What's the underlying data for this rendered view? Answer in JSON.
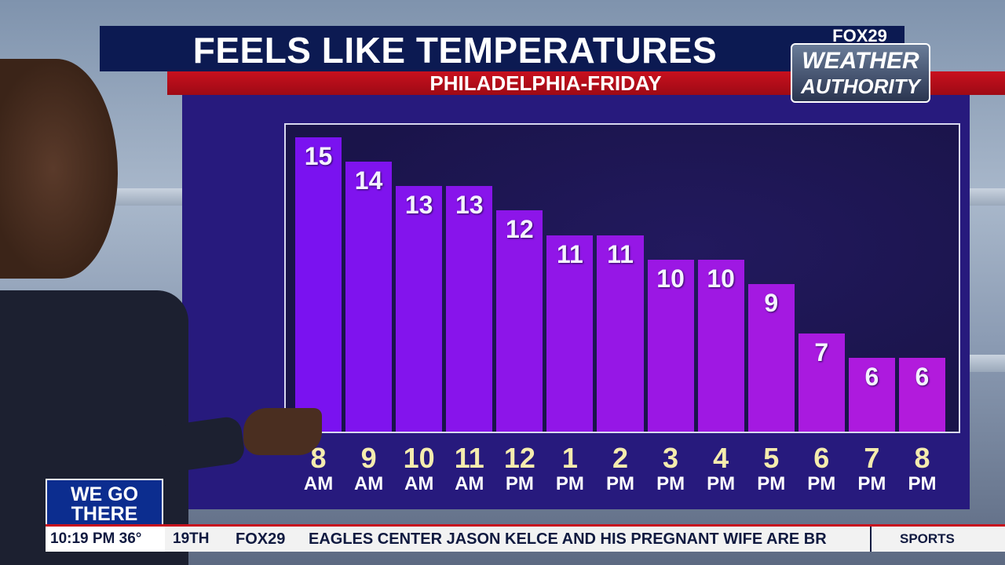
{
  "header": {
    "title": "FEELS LIKE TEMPERATURES",
    "subtitle": "PHILADELPHIA-FRIDAY"
  },
  "brand": {
    "network": "FOX29",
    "line1": "WEATHER",
    "line2": "AUTHORITY"
  },
  "colors": {
    "panel": "#271a7d",
    "bar_start": "#7a12f0",
    "bar_end": "#b21bdc",
    "title_bar": "#0c1a52",
    "sub_bar": "#c8101e"
  },
  "chart_data": {
    "type": "bar",
    "title": "FEELS LIKE TEMPERATURES",
    "subtitle": "PHILADELPHIA-FRIDAY",
    "categories": [
      "8 AM",
      "9 AM",
      "10 AM",
      "11 AM",
      "12 PM",
      "1 PM",
      "2 PM",
      "3 PM",
      "4 PM",
      "5 PM",
      "6 PM",
      "7 PM",
      "8 PM"
    ],
    "hours": [
      "8",
      "9",
      "10",
      "11",
      "12",
      "1",
      "2",
      "3",
      "4",
      "5",
      "6",
      "7",
      "8"
    ],
    "periods": [
      "AM",
      "AM",
      "AM",
      "AM",
      "PM",
      "PM",
      "PM",
      "PM",
      "PM",
      "PM",
      "PM",
      "PM",
      "PM"
    ],
    "values": [
      15,
      14,
      13,
      13,
      12,
      11,
      11,
      10,
      10,
      9,
      7,
      6,
      6
    ],
    "ylim": [
      3,
      15.5
    ],
    "grid": false
  },
  "promo": {
    "line1": "WE GO",
    "line2": "THERE"
  },
  "ticker": {
    "time_temp": "10:19 PM  36°",
    "day": "19TH",
    "logo": "FOX29",
    "headline": "EAGLES CENTER JASON KELCE AND HIS PREGNANT WIFE ARE BR",
    "section": "SPORTS"
  }
}
